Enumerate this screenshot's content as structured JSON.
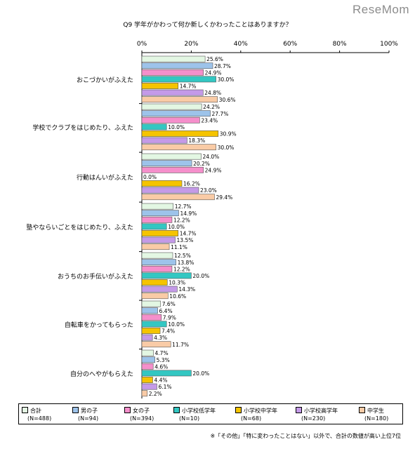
{
  "logo": "ReseMom",
  "footnote": "※「その他」「特に変わったことはない」以外で、合計の数値が高い上位7位",
  "chart_data": {
    "type": "bar",
    "orientation": "horizontal",
    "title": "Q9 学年がかわって何か新しくかわったことはありますか？",
    "xlim": [
      0,
      100
    ],
    "xticks": [
      "0%",
      "20%",
      "40%",
      "60%",
      "80%",
      "100%"
    ],
    "value_suffix": "%",
    "grid": false,
    "legend_position": "bottom",
    "categories": [
      "おこづかいがふえた",
      "学校でクラブをはじめたり、ふえた",
      "行動はんいがふえた",
      "塾やならいごとをはじめたり、ふえた",
      "おうちのお手伝いがふえた",
      "自転車をかってもらった",
      "自分のへやがもらえた"
    ],
    "series": [
      {
        "name": "合計",
        "n_label": "(N=488)",
        "color": "#e3f7e3",
        "values": [
          25.6,
          24.2,
          24.0,
          12.7,
          12.5,
          7.6,
          4.7
        ]
      },
      {
        "name": "男の子",
        "n_label": "(N=94)",
        "color": "#9dc3ea",
        "values": [
          28.7,
          27.7,
          20.2,
          14.9,
          13.8,
          6.4,
          5.3
        ]
      },
      {
        "name": "女の子",
        "n_label": "(N=394)",
        "color": "#f58fcb",
        "values": [
          24.9,
          23.4,
          24.9,
          12.2,
          12.2,
          7.9,
          4.6
        ]
      },
      {
        "name": "小学校低学年",
        "n_label": "(N=10)",
        "color": "#33c7c2",
        "values": [
          30.0,
          10.0,
          0.0,
          10.0,
          20.0,
          10.0,
          20.0
        ]
      },
      {
        "name": "小学校中学年",
        "n_label": "(N=68)",
        "color": "#f5c400",
        "values": [
          14.7,
          30.9,
          16.2,
          14.7,
          10.3,
          7.4,
          4.4
        ]
      },
      {
        "name": "小学校高学年",
        "n_label": "(N=230)",
        "color": "#c49ae8",
        "values": [
          24.8,
          18.3,
          23.0,
          13.5,
          14.3,
          4.3,
          6.1
        ]
      },
      {
        "name": "中学生",
        "n_label": "(N=180)",
        "color": "#f9cba6",
        "values": [
          30.6,
          30.0,
          29.4,
          11.1,
          10.6,
          11.7,
          2.2
        ]
      }
    ]
  }
}
